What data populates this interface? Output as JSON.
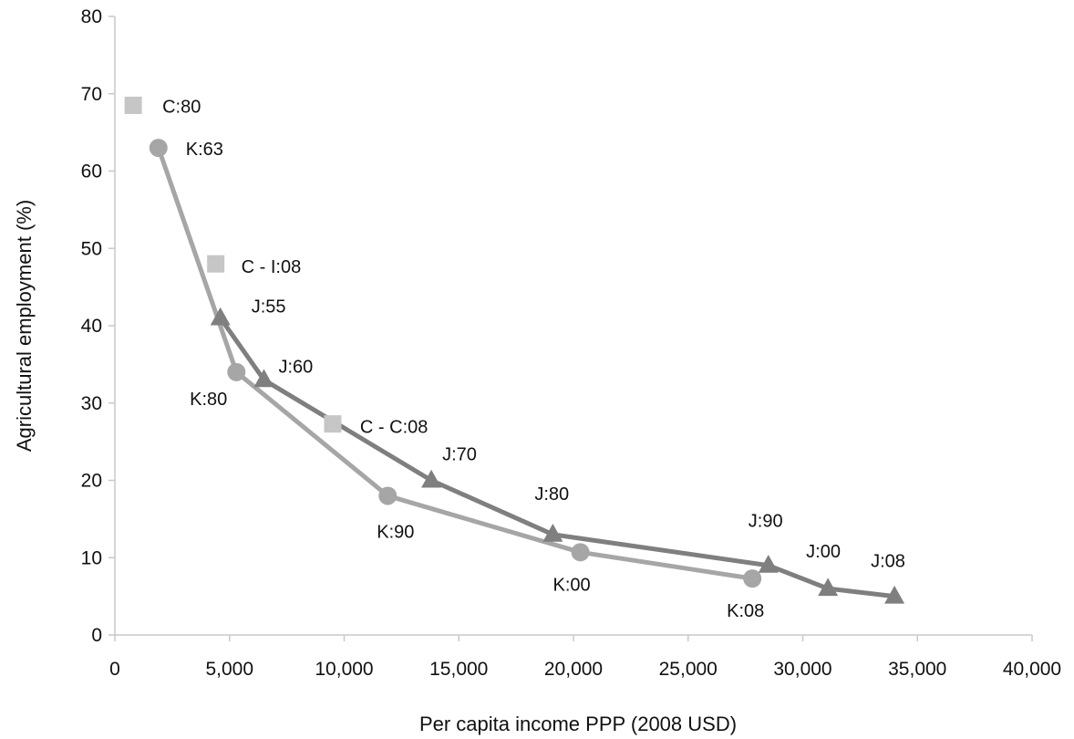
{
  "chart_data": {
    "type": "line",
    "xlabel": "Per capita income PPP (2008 USD)",
    "ylabel": "Agricultural employment (%)",
    "xlim": [
      0,
      40000
    ],
    "ylim": [
      0,
      80
    ],
    "x_ticks": [
      0,
      5000,
      10000,
      15000,
      20000,
      25000,
      30000,
      35000,
      40000
    ],
    "x_tick_labels": [
      "0",
      "5,000",
      "10,000",
      "15,000",
      "20,000",
      "25,000",
      "30,000",
      "35,000",
      "40,000"
    ],
    "y_ticks": [
      0,
      10,
      20,
      30,
      40,
      50,
      60,
      70,
      80
    ],
    "y_tick_labels": [
      "0",
      "10",
      "20",
      "30",
      "40",
      "50",
      "60",
      "70",
      "80"
    ],
    "grid": false,
    "legend": "none",
    "series": [
      {
        "marker": "circle",
        "connected": true,
        "color": "#a6a6a6",
        "points": [
          {
            "label": "K:63",
            "x": 1900,
            "y": 63
          },
          {
            "label": "K:80",
            "x": 5300,
            "y": 34
          },
          {
            "label": "K:90",
            "x": 11900,
            "y": 18
          },
          {
            "label": "K:00",
            "x": 20300,
            "y": 10.7
          },
          {
            "label": "K:08",
            "x": 27800,
            "y": 7.3
          }
        ]
      },
      {
        "marker": "triangle",
        "connected": true,
        "color": "#7f7f7f",
        "points": [
          {
            "label": "J:55",
            "x": 4600,
            "y": 41
          },
          {
            "label": "J:60",
            "x": 6500,
            "y": 33
          },
          {
            "label": "J:70",
            "x": 13800,
            "y": 20
          },
          {
            "label": "J:80",
            "x": 19100,
            "y": 13
          },
          {
            "label": "J:90",
            "x": 28500,
            "y": 9
          },
          {
            "label": "J:00",
            "x": 31100,
            "y": 6
          },
          {
            "label": "J:08",
            "x": 34000,
            "y": 5
          }
        ]
      },
      {
        "marker": "square",
        "connected": false,
        "color": "#c6c6c6",
        "points": [
          {
            "label": "C:80",
            "x": 800,
            "y": 68.5
          },
          {
            "label": "C - I:08",
            "x": 4400,
            "y": 48
          },
          {
            "label": "C - C:08",
            "x": 9500,
            "y": 27.3
          }
        ]
      }
    ]
  }
}
